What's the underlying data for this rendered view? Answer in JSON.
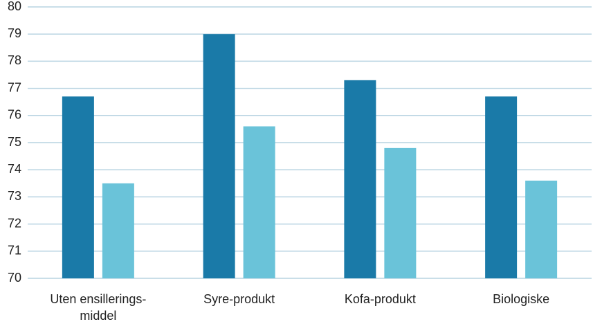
{
  "chart_data": {
    "type": "bar",
    "categories": [
      "Uten ensillerings-\nmiddel",
      "Syre-produkt",
      "Kofa-produkt",
      "Biologiske"
    ],
    "series": [
      {
        "color": "#1a7aa8",
        "values": [
          76.7,
          79.0,
          77.3,
          76.7
        ]
      },
      {
        "color": "#6ac3d9",
        "values": [
          73.5,
          75.6,
          74.8,
          73.6
        ]
      }
    ],
    "ylim": [
      70,
      80
    ],
    "yticks": [
      70,
      71,
      72,
      73,
      74,
      75,
      76,
      77,
      78,
      79,
      80
    ],
    "grid": true
  }
}
